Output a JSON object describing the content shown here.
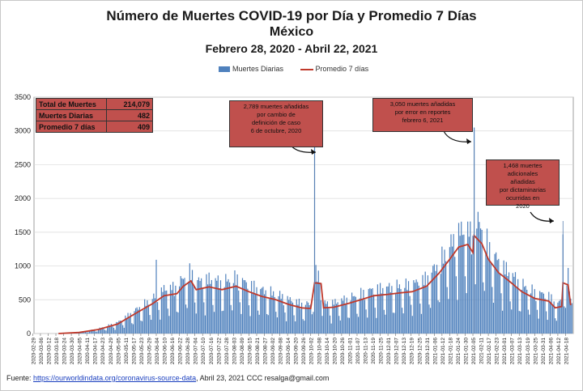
{
  "chart_data": {
    "type": "bar",
    "title": "Número de Muertes COVID-19 por Día y Promedio 7 Días",
    "subtitle": "México",
    "date_range": "Febrero 28, 2020 - Abril 22, 2021",
    "series": [
      {
        "name": "Muertes Diarias",
        "type": "bar",
        "color": "#4f81bd"
      },
      {
        "name": "Promedio 7 días",
        "type": "line",
        "color": "#c0392b"
      }
    ],
    "ylim": [
      0,
      3500
    ],
    "yticks": [
      0,
      500,
      1000,
      1500,
      2000,
      2500,
      3000,
      3500
    ],
    "x_start": "2020-03-01",
    "x_end": "2021-04-24",
    "xtick_labels": [
      "2020-02-29",
      "2020-03-06",
      "2020-03-12",
      "2020-03-18",
      "2020-03-24",
      "2020-03-30",
      "2020-04-05",
      "2020-04-11",
      "2020-04-17",
      "2020-04-23",
      "2020-04-29",
      "2020-05-05",
      "2020-05-11",
      "2020-05-17",
      "2020-05-23",
      "2020-05-29",
      "2020-06-04",
      "2020-06-10",
      "2020-06-16",
      "2020-06-22",
      "2020-06-28",
      "2020-07-04",
      "2020-07-10",
      "2020-07-16",
      "2020-07-22",
      "2020-07-28",
      "2020-08-03",
      "2020-08-09",
      "2020-08-15",
      "2020-08-21",
      "2020-08-27",
      "2020-09-02",
      "2020-09-08",
      "2020-09-14",
      "2020-09-20",
      "2020-09-26",
      "2020-10-02",
      "2020-10-08",
      "2020-10-14",
      "2020-10-20",
      "2020-10-26",
      "2020-11-01",
      "2020-11-07",
      "2020-11-13",
      "2020-11-19",
      "2020-11-25",
      "2020-12-01",
      "2020-12-07",
      "2020-12-13",
      "2020-12-19",
      "2020-12-25",
      "2020-12-31",
      "2021-01-06",
      "2021-01-12",
      "2021-01-18",
      "2021-01-24",
      "2021-01-30",
      "2021-02-05",
      "2021-02-11",
      "2021-02-17",
      "2021-02-23",
      "2021-03-01",
      "2021-03-07",
      "2021-03-13",
      "2021-03-19",
      "2021-03-25",
      "2021-03-31",
      "2021-04-06",
      "2021-04-12",
      "2021-04-18"
    ],
    "daily_weekly_pattern": [
      0.45,
      1.12,
      1.18,
      1.15,
      1.1,
      1.05,
      0.6
    ],
    "daily_spikes": [
      {
        "date": "2020-06-04",
        "value": 1092
      },
      {
        "date": "2020-10-05",
        "value": 2789
      },
      {
        "date": "2021-02-06",
        "value": 3050
      },
      {
        "date": "2021-04-16",
        "value": 1468
      }
    ],
    "avg_7d": [
      {
        "date": "2020-03-20",
        "value": 0
      },
      {
        "date": "2020-04-05",
        "value": 15
      },
      {
        "date": "2020-04-20",
        "value": 60
      },
      {
        "date": "2020-05-05",
        "value": 140
      },
      {
        "date": "2020-05-20",
        "value": 310
      },
      {
        "date": "2020-06-01",
        "value": 440
      },
      {
        "date": "2020-06-10",
        "value": 560
      },
      {
        "date": "2020-06-20",
        "value": 590
      },
      {
        "date": "2020-06-25",
        "value": 700
      },
      {
        "date": "2020-07-01",
        "value": 780
      },
      {
        "date": "2020-07-05",
        "value": 650
      },
      {
        "date": "2020-07-15",
        "value": 690
      },
      {
        "date": "2020-07-25",
        "value": 650
      },
      {
        "date": "2020-08-05",
        "value": 700
      },
      {
        "date": "2020-08-15",
        "value": 620
      },
      {
        "date": "2020-08-25",
        "value": 550
      },
      {
        "date": "2020-09-05",
        "value": 500
      },
      {
        "date": "2020-09-15",
        "value": 430
      },
      {
        "date": "2020-09-25",
        "value": 380
      },
      {
        "date": "2020-10-02",
        "value": 370
      },
      {
        "date": "2020-10-05",
        "value": 750
      },
      {
        "date": "2020-10-10",
        "value": 740
      },
      {
        "date": "2020-10-12",
        "value": 380
      },
      {
        "date": "2020-10-20",
        "value": 390
      },
      {
        "date": "2020-11-01",
        "value": 450
      },
      {
        "date": "2020-11-10",
        "value": 500
      },
      {
        "date": "2020-11-20",
        "value": 560
      },
      {
        "date": "2020-12-01",
        "value": 580
      },
      {
        "date": "2020-12-10",
        "value": 600
      },
      {
        "date": "2020-12-20",
        "value": 620
      },
      {
        "date": "2020-12-31",
        "value": 700
      },
      {
        "date": "2021-01-10",
        "value": 900
      },
      {
        "date": "2021-01-18",
        "value": 1100
      },
      {
        "date": "2021-01-25",
        "value": 1280
      },
      {
        "date": "2021-02-01",
        "value": 1320
      },
      {
        "date": "2021-02-05",
        "value": 1200
      },
      {
        "date": "2021-02-06",
        "value": 1450
      },
      {
        "date": "2021-02-12",
        "value": 1330
      },
      {
        "date": "2021-02-17",
        "value": 1100
      },
      {
        "date": "2021-02-25",
        "value": 900
      },
      {
        "date": "2021-03-05",
        "value": 780
      },
      {
        "date": "2021-03-15",
        "value": 620
      },
      {
        "date": "2021-03-25",
        "value": 520
      },
      {
        "date": "2021-04-05",
        "value": 480
      },
      {
        "date": "2021-04-10",
        "value": 380
      },
      {
        "date": "2021-04-15",
        "value": 400
      },
      {
        "date": "2021-04-16",
        "value": 750
      },
      {
        "date": "2021-04-20",
        "value": 720
      },
      {
        "date": "2021-04-22",
        "value": 420
      }
    ]
  },
  "legend": {
    "daily": "Muertes Diarias",
    "avg": "Promedio 7 días"
  },
  "stats": [
    {
      "label": "Total de Muertes",
      "value": "214,079"
    },
    {
      "label": "Muertes Diarias",
      "value": "482"
    },
    {
      "label": "Promedio 7 días",
      "value": "409"
    }
  ],
  "notes": {
    "n1": [
      "2,789 muertes  añadidas",
      "por cambio de",
      "definición de caso",
      "6 de octubre,  2020"
    ],
    "n2": [
      "3,050 muertes  añadidas",
      "por error en reportes",
      "febrero  6, 2021"
    ],
    "n3": [
      "1,468  muertes adicionales",
      "añadidas",
      "por dictaminarias",
      "ocurridas en",
      "2020"
    ]
  },
  "source": {
    "prefix": "Fuente: ",
    "link": "https://ourworldindata.org/coronavirus-source-data",
    "suffix": ",  Abril 23, 2021     CCC    resalga@gmail.com"
  },
  "colors": {
    "bar": "#4f81bd",
    "line": "#c0392b",
    "box": "#c0504d"
  }
}
